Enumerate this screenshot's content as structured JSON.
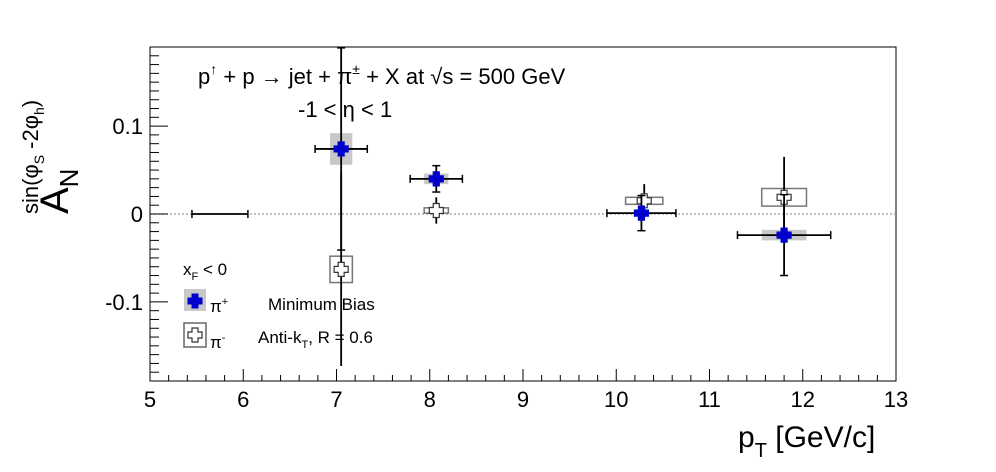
{
  "chart_data": {
    "type": "scatter",
    "title_line1_parts": {
      "p": "p",
      "arrow_sup": "↑",
      "mid": " + p ",
      "to": "→",
      "jet": " jet + π",
      "pm_sup": "±",
      "rest": " + X at  √s = 500 GeV"
    },
    "title_line2": "-1 < η < 1",
    "xlabel": {
      "main": "p",
      "sub": "T",
      "unit": " [GeV/c]"
    },
    "ylabel": {
      "main": "A",
      "sub": "N",
      "sup": "sin(φ",
      "sup_s": "S",
      "sup_mid": " -2φ",
      "sup_h": "h",
      "sup_end": ")"
    },
    "xlim": [
      5,
      13
    ],
    "ylim": [
      -0.19,
      0.19
    ],
    "xticks": [
      "5",
      "6",
      "7",
      "8",
      "9",
      "10",
      "11",
      "12",
      "13"
    ],
    "yticks": [
      {
        "value": 0.1,
        "label": "0.1"
      },
      {
        "value": 0.0,
        "label": "0"
      },
      {
        "value": -0.1,
        "label": "-0.1"
      }
    ],
    "zero_line": true,
    "legend": {
      "header_main": "x",
      "header_sub": "F",
      "header_rest": " < 0",
      "pip_label": "π",
      "pip_sup": "+",
      "pim_label": "π",
      "pim_sup": "-",
      "text1": "Minimum Bias",
      "text2_main": "Anti-k",
      "text2_sub": "T",
      "text2_rest": ", R = 0.6"
    },
    "series": [
      {
        "name": "π+",
        "color": "#0000cc",
        "box_fill": "#c8c8c8",
        "points": [
          {
            "x": 5.75,
            "y": 0.0,
            "xerr": 0.3,
            "yerr": 0.0,
            "sys_x": 0,
            "sys_y": 0
          },
          {
            "x": 7.05,
            "y": 0.074,
            "xerr": 0.28,
            "yerr": 0.115,
            "sys_x": 0.12,
            "sys_y": 0.018
          },
          {
            "x": 8.07,
            "y": 0.04,
            "xerr": 0.28,
            "yerr": 0.015,
            "sys_x": 0.13,
            "sys_y": 0.006
          },
          {
            "x": 10.27,
            "y": 0.001,
            "xerr": 0.37,
            "yerr": 0.02,
            "sys_x": 0,
            "sys_y": 0
          },
          {
            "x": 11.8,
            "y": -0.024,
            "xerr": 0.5,
            "yerr": 0.046,
            "sys_x": 0.24,
            "sys_y": 0.006
          }
        ]
      },
      {
        "name": "π-",
        "color": "#555555",
        "box_fill": "none",
        "points": [
          {
            "x": 7.05,
            "y": -0.063,
            "xerr": 0.0,
            "yerr": 0.11,
            "sys_x": 0.12,
            "sys_y": 0.015
          },
          {
            "x": 8.07,
            "y": 0.004,
            "xerr": 0.0,
            "yerr": 0.015,
            "sys_x": 0.13,
            "sys_y": 0.003
          },
          {
            "x": 10.3,
            "y": 0.015,
            "xerr": 0.0,
            "yerr": 0.019,
            "sys_x": 0.2,
            "sys_y": 0.004
          },
          {
            "x": 11.8,
            "y": 0.019,
            "xerr": 0.0,
            "yerr": 0.046,
            "sys_x": 0.24,
            "sys_y": 0.01
          }
        ]
      }
    ]
  }
}
